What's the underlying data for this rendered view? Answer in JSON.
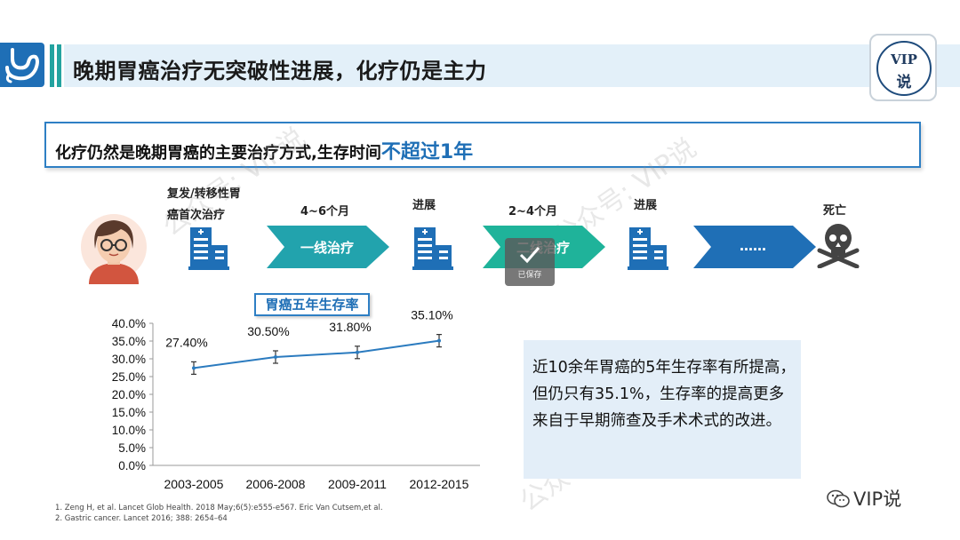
{
  "header": {
    "title": "晚期胃癌治疗无突破性进展，化疗仍是主力"
  },
  "badge": {
    "line1": "VIP",
    "line2": "说"
  },
  "subtitle": {
    "text": "化疗仍然是晚期胃癌的主要治疗方式,生存时间",
    "highlight": "不超过1年"
  },
  "timeline": {
    "start_label_1": "复发/转移性胃",
    "start_label_2": "癌首次治疗",
    "period1": "4~6个月",
    "progress1": "进展",
    "period2": "2~4个月",
    "progress2": "进展",
    "death": "死亡",
    "arrow1": "一线治疗",
    "arrow2": "二线治疗",
    "arrow3": "……"
  },
  "saved_toast": "已保存",
  "chart_data": {
    "type": "line",
    "title": "胃癌五年生存率",
    "categories": [
      "2003-2005",
      "2006-2008",
      "2009-2011",
      "2012-2015"
    ],
    "values": [
      27.4,
      30.5,
      31.8,
      35.1
    ],
    "data_labels": [
      "27.40%",
      "30.50%",
      "31.80%",
      "35.10%"
    ],
    "ylim": [
      0,
      40
    ],
    "yticks": [
      "0.0%",
      "5.0%",
      "10.0%",
      "15.0%",
      "20.0%",
      "25.0%",
      "30.0%",
      "35.0%",
      "40.0%"
    ],
    "error_bars": true,
    "line_color": "#2b7bbf"
  },
  "note": "近10余年胃癌的5年生存率有所提高，但仍只有35.1%，生存率的提高更多来自于早期筛查及手术术式的改进。",
  "references": [
    "1. Zeng H, et al. Lancet Glob Health. 2018 May;6(5):e555-e567. Eric Van Cutsem,et al.",
    "2. Gastric cancer. Lancet 2016; 388: 2654–64"
  ],
  "brand": "VIP说",
  "watermark": "公众号: VIP说",
  "colors": {
    "primary": "#1f6fb6",
    "teal": "#23a3a0",
    "light_bg": "#e3f0f9"
  }
}
